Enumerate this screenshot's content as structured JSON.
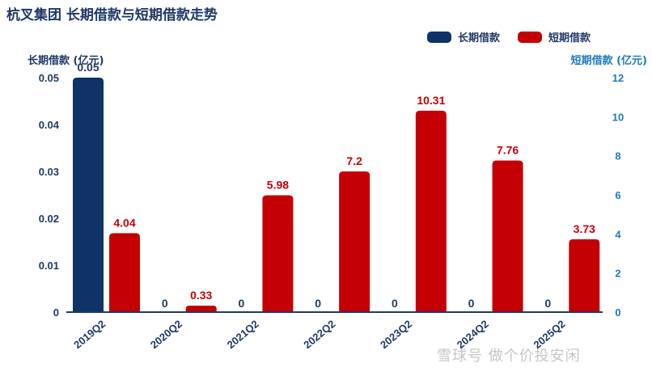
{
  "title": "杭叉集团 长期借款与短期借款走势",
  "legend": {
    "long_label": "长期借款",
    "short_label": "短期借款"
  },
  "left_axis_title": "长期借款 (亿元)",
  "right_axis_title": "短期借款 (亿元)",
  "watermark": "雪球号 做个价投安闲",
  "colors": {
    "long": "#0d3367",
    "short": "#c40005",
    "left_axis_text": "#1f3a66",
    "right_axis_text": "#1f7ab8",
    "long_label": "#1f3a66",
    "short_label": "#c40005"
  },
  "chart_data": {
    "type": "bar",
    "categories": [
      "2019Q2",
      "2020Q2",
      "2021Q2",
      "2022Q2",
      "2023Q2",
      "2024Q2",
      "2025Q2"
    ],
    "series": [
      {
        "name": "长期借款",
        "axis": "left",
        "values": [
          0.05,
          0,
          0,
          0,
          0,
          0,
          0
        ],
        "labels": [
          "0.05",
          "0",
          "0",
          "0",
          "0",
          "0",
          "0"
        ]
      },
      {
        "name": "短期借款",
        "axis": "right",
        "values": [
          4.04,
          0.33,
          5.98,
          7.2,
          10.31,
          7.76,
          3.73
        ],
        "labels": [
          "4.04",
          "0.33",
          "5.98",
          "7.2",
          "10.31",
          "7.76",
          "3.73"
        ]
      }
    ],
    "left_axis": {
      "ylim": [
        0,
        0.05
      ],
      "ticks": [
        "0",
        "0.01",
        "0.02",
        "0.03",
        "0.04",
        "0.05"
      ]
    },
    "right_axis": {
      "ylim": [
        0,
        12
      ],
      "ticks": [
        "0",
        "2",
        "4",
        "6",
        "8",
        "10",
        "12"
      ]
    }
  }
}
